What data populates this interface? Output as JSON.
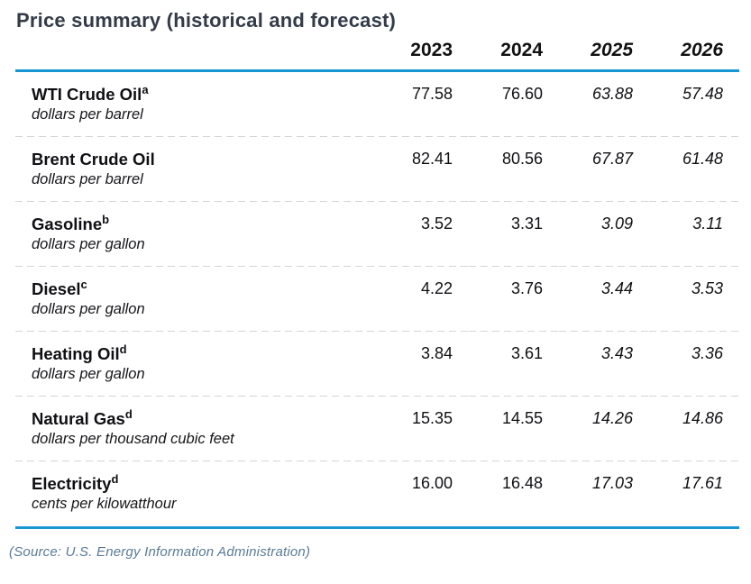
{
  "page": {
    "title": "Price summary (historical and forecast)",
    "source": "(Source: U.S. Energy Information Administration)"
  },
  "colors": {
    "accent_blue": "#1896d2",
    "title_text": "#333b47",
    "body_text": "#18181a",
    "source_text": "#5b7a96",
    "separator": "#d4d4d4"
  },
  "chart_data": {
    "type": "table",
    "title": "Price summary (historical and forecast)",
    "columns": [
      "2023",
      "2024",
      "2025",
      "2026"
    ],
    "historical_columns": [
      "2023",
      "2024"
    ],
    "forecast_columns": [
      "2025",
      "2026"
    ],
    "rows": [
      {
        "label": "WTI Crude Oil",
        "footnote": "a",
        "unit": "dollars per barrel",
        "values": [
          "77.58",
          "76.60",
          "63.88",
          "57.48"
        ]
      },
      {
        "label": "Brent Crude Oil",
        "footnote": "",
        "unit": "dollars per barrel",
        "values": [
          "82.41",
          "80.56",
          "67.87",
          "61.48"
        ]
      },
      {
        "label": "Gasoline",
        "footnote": "b",
        "unit": "dollars per gallon",
        "values": [
          "3.52",
          "3.31",
          "3.09",
          "3.11"
        ]
      },
      {
        "label": "Diesel",
        "footnote": "c",
        "unit": "dollars per gallon",
        "values": [
          "4.22",
          "3.76",
          "3.44",
          "3.53"
        ]
      },
      {
        "label": "Heating Oil",
        "footnote": "d",
        "unit": "dollars per gallon",
        "values": [
          "3.84",
          "3.61",
          "3.43",
          "3.36"
        ]
      },
      {
        "label": "Natural Gas",
        "footnote": "d",
        "unit": "dollars per thousand cubic feet",
        "values": [
          "15.35",
          "14.55",
          "14.26",
          "14.86"
        ]
      },
      {
        "label": "Electricity",
        "footnote": "d",
        "unit": "cents per kilowatthour",
        "values": [
          "16.00",
          "16.48",
          "17.03",
          "17.61"
        ]
      }
    ],
    "source": "(Source: U.S. Energy Information Administration)",
    "layout": {
      "grid": "off",
      "legend": "none",
      "forecast_style": "italic"
    }
  }
}
